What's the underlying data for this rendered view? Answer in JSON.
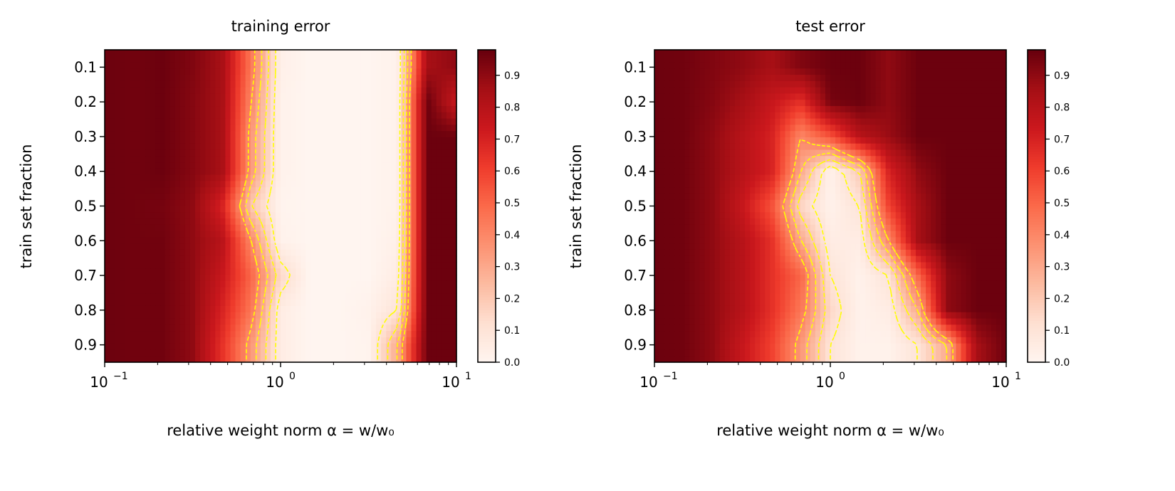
{
  "chart_data": [
    {
      "type": "heatmap",
      "title": "training error",
      "xlabel": "relative weight norm α = w/w₀",
      "ylabel": "train set fraction",
      "x_scale": "log",
      "xlim": [
        0.1,
        10
      ],
      "ylim": [
        0.95,
        0.05
      ],
      "x_tick_labels": [
        "10",
        "10",
        "10"
      ],
      "x_tick_exponents": [
        "−1",
        "0",
        "1"
      ],
      "y_tick_labels": [
        "0.1",
        "0.2",
        "0.3",
        "0.4",
        "0.5",
        "0.6",
        "0.7",
        "0.8",
        "0.9"
      ],
      "x": [
        0.1,
        0.147,
        0.215,
        0.316,
        0.464,
        0.681,
        1,
        1.47,
        2.15,
        3.16,
        4.64,
        6.81,
        10
      ],
      "y": [
        0.1,
        0.2,
        0.3,
        0.4,
        0.5,
        0.6,
        0.7,
        0.8,
        0.9
      ],
      "z": [
        [
          0.97,
          0.96,
          0.97,
          0.93,
          0.85,
          0.45,
          0.03,
          0,
          0,
          0,
          0.02,
          0.85,
          0.9
        ],
        [
          0.97,
          0.96,
          0.97,
          0.92,
          0.85,
          0.4,
          0.02,
          0,
          0,
          0,
          0.02,
          0.97,
          0.75
        ],
        [
          0.97,
          0.96,
          0.97,
          0.92,
          0.85,
          0.35,
          0.02,
          0,
          0,
          0,
          0.02,
          0.97,
          0.97
        ],
        [
          0.97,
          0.96,
          0.97,
          0.92,
          0.85,
          0.35,
          0.02,
          0,
          0,
          0,
          0.02,
          0.97,
          0.97
        ],
        [
          0.97,
          0.96,
          0.95,
          0.9,
          0.7,
          0.2,
          0.01,
          0,
          0,
          0,
          0.02,
          0.97,
          0.97
        ],
        [
          0.97,
          0.96,
          0.96,
          0.9,
          0.8,
          0.4,
          0.02,
          0,
          0,
          0,
          0.03,
          0.97,
          0.97
        ],
        [
          0.97,
          0.96,
          0.96,
          0.9,
          0.75,
          0.5,
          0.15,
          0,
          0,
          0,
          0.05,
          0.97,
          0.97
        ],
        [
          0.97,
          0.96,
          0.96,
          0.9,
          0.7,
          0.45,
          0.05,
          0,
          0,
          0.02,
          0.1,
          0.97,
          0.97
        ],
        [
          0.97,
          0.96,
          0.96,
          0.9,
          0.65,
          0.35,
          0.05,
          0,
          0,
          0.01,
          0.3,
          0.97,
          0.97
        ]
      ],
      "contour_levels": [
        0.1,
        0.2,
        0.3,
        0.4
      ],
      "contour_color": "#ffff00",
      "colormap": "Reds",
      "colorbar": {
        "range": [
          0,
          0.98
        ],
        "tick_labels": [
          "0.0",
          "0.1",
          "0.2",
          "0.3",
          "0.4",
          "0.5",
          "0.6",
          "0.7",
          "0.8",
          "0.9"
        ]
      }
    },
    {
      "type": "heatmap",
      "title": "test error",
      "xlabel": "relative weight norm α = w/w₀",
      "ylabel": "train set fraction",
      "x_scale": "log",
      "xlim": [
        0.1,
        10
      ],
      "ylim": [
        0.95,
        0.05
      ],
      "x_tick_labels": [
        "10",
        "10",
        "10"
      ],
      "x_tick_exponents": [
        "−1",
        "0",
        "1"
      ],
      "y_tick_labels": [
        "0.1",
        "0.2",
        "0.3",
        "0.4",
        "0.5",
        "0.6",
        "0.7",
        "0.8",
        "0.9"
      ],
      "x": [
        0.1,
        0.147,
        0.215,
        0.316,
        0.464,
        0.681,
        1,
        1.47,
        2.15,
        3.16,
        4.64,
        6.81,
        10
      ],
      "y": [
        0.1,
        0.2,
        0.3,
        0.4,
        0.5,
        0.6,
        0.7,
        0.8,
        0.9
      ],
      "z": [
        [
          0.97,
          0.96,
          0.93,
          0.9,
          0.85,
          0.93,
          0.97,
          0.97,
          0.9,
          0.97,
          0.97,
          0.97,
          0.97
        ],
        [
          0.97,
          0.96,
          0.92,
          0.85,
          0.75,
          0.65,
          0.95,
          0.97,
          0.9,
          0.97,
          0.97,
          0.97,
          0.97
        ],
        [
          0.97,
          0.96,
          0.9,
          0.8,
          0.7,
          0.4,
          0.55,
          0.8,
          0.88,
          0.97,
          0.97,
          0.97,
          0.97
        ],
        [
          0.97,
          0.96,
          0.9,
          0.8,
          0.7,
          0.3,
          0.02,
          0.2,
          0.7,
          0.9,
          0.97,
          0.97,
          0.97
        ],
        [
          0.97,
          0.96,
          0.9,
          0.75,
          0.55,
          0.15,
          0.02,
          0.1,
          0.6,
          0.85,
          0.97,
          0.97,
          0.97
        ],
        [
          0.97,
          0.96,
          0.9,
          0.8,
          0.65,
          0.3,
          0.05,
          0.05,
          0.4,
          0.85,
          0.97,
          0.97,
          0.97
        ],
        [
          0.97,
          0.96,
          0.9,
          0.8,
          0.65,
          0.5,
          0.1,
          0.02,
          0.1,
          0.5,
          0.9,
          0.97,
          0.97
        ],
        [
          0.97,
          0.96,
          0.9,
          0.8,
          0.65,
          0.45,
          0.15,
          0.02,
          0.05,
          0.3,
          0.9,
          0.97,
          0.97
        ],
        [
          0.97,
          0.96,
          0.9,
          0.75,
          0.6,
          0.35,
          0.1,
          0.02,
          0.02,
          0.1,
          0.3,
          0.85,
          0.97
        ]
      ],
      "contour_levels": [
        0.1,
        0.2,
        0.3,
        0.4
      ],
      "contour_color": "#ffff00",
      "colormap": "Reds",
      "colorbar": {
        "range": [
          0,
          0.98
        ],
        "tick_labels": [
          "0.0",
          "0.1",
          "0.2",
          "0.3",
          "0.4",
          "0.5",
          "0.6",
          "0.7",
          "0.8",
          "0.9"
        ]
      }
    }
  ]
}
